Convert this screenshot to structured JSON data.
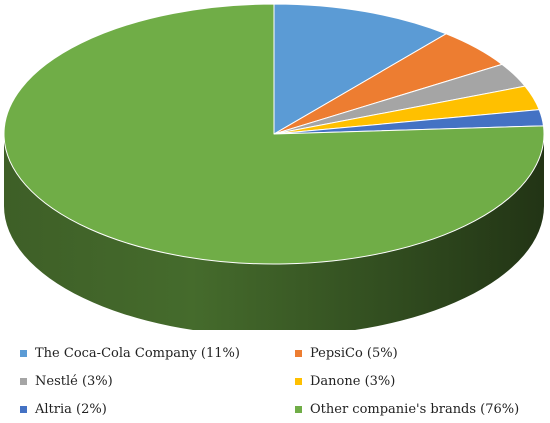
{
  "chart_data": {
    "type": "pie",
    "style": "3d",
    "title": "",
    "categories": [
      "The Coca-Cola Company (11%)",
      "PepsiCo (5%)",
      "Nestlé (3%)",
      "Danone (3%)",
      "Altria (2%)",
      "Other companie's brands (76%)"
    ],
    "values": [
      11,
      5,
      3,
      3,
      2,
      76
    ],
    "colors": [
      "#5b9bd5",
      "#ed7d31",
      "#a5a5a5",
      "#ffc000",
      "#4472c4",
      "#70ad47"
    ],
    "legend_position": "bottom",
    "legend": [
      {
        "label": "The  Coca-Cola  Company (11%)",
        "color": "#5b9bd5"
      },
      {
        "label": "PepsiCo (5%)",
        "color": "#ed7d31"
      },
      {
        "label": "Nestlé (3%)",
        "color": "#a5a5a5"
      },
      {
        "label": "Danone (3%)",
        "color": "#ffc000"
      },
      {
        "label": "Altria (2%)",
        "color": "#4472c4"
      },
      {
        "label": "Other companie's brands (76%)",
        "color": "#70ad47"
      }
    ]
  }
}
